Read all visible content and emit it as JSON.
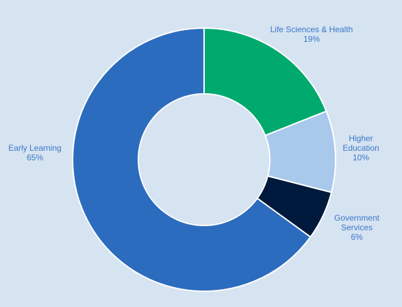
{
  "chart_data": {
    "type": "pie",
    "variant": "donut",
    "slices": [
      {
        "label_lines": [
          "Life Sciences & Health",
          "19%"
        ],
        "value": 19,
        "color": "#00a96e"
      },
      {
        "label_lines": [
          "Higher",
          "Education",
          "10%"
        ],
        "value": 10,
        "color": "#a8c8ec"
      },
      {
        "label_lines": [
          "Government",
          "Services",
          "6%"
        ],
        "value": 6,
        "color": "#001a3d"
      },
      {
        "label_lines": [
          "Early Learning",
          "65%"
        ],
        "value": 65,
        "color": "#2c6cbf"
      }
    ],
    "start": "top",
    "direction": "clockwise",
    "legend": "none",
    "label_color": "#3a78c8",
    "background": "#d6e3f1"
  }
}
